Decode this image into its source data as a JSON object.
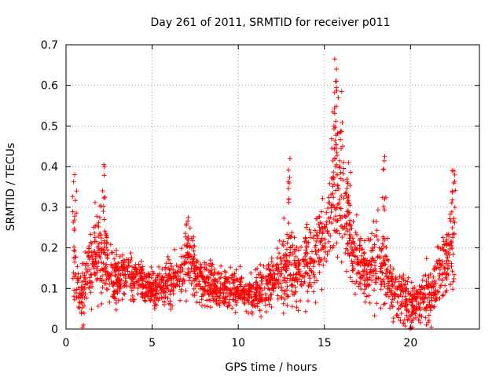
{
  "chart_data": {
    "type": "scatter",
    "title": "Day 261 of 2011, SRMTID for receiver p011",
    "xlabel": "GPS time / hours",
    "ylabel": "SRMTID / TECUs",
    "xlim": [
      0,
      24
    ],
    "ylim": [
      0,
      0.7
    ],
    "xticks": [
      0,
      5,
      10,
      15,
      20
    ],
    "yticks": [
      0,
      0.1,
      0.2,
      0.3,
      0.4,
      0.5,
      0.6,
      0.7
    ],
    "ytick_labels": [
      "0",
      "0.1",
      "0.2",
      "0.3",
      "0.4",
      "0.5",
      "0.6",
      "0.7"
    ],
    "grid": true,
    "marker": "+",
    "color": "#ff0000",
    "profile": {
      "description": "approximate envelope of the plotted scatter cloud, in data units",
      "x": [
        0.4,
        0.6,
        0.8,
        1.0,
        1.3,
        1.6,
        2.0,
        2.2,
        2.5,
        3.0,
        3.5,
        4.0,
        4.5,
        5.0,
        5.5,
        6.0,
        6.5,
        7.0,
        7.3,
        7.6,
        8.0,
        8.5,
        9.0,
        9.5,
        10.0,
        10.5,
        11.0,
        11.5,
        12.0,
        12.5,
        13.0,
        13.5,
        14.0,
        14.5,
        15.0,
        15.3,
        15.6,
        15.9,
        16.2,
        16.5,
        16.8,
        17.2,
        17.6,
        18.0,
        18.5,
        19.0,
        19.5,
        20.0,
        20.5,
        21.0,
        21.5,
        22.0,
        22.5
      ],
      "mean": [
        0.18,
        0.13,
        0.07,
        0.08,
        0.15,
        0.17,
        0.2,
        0.18,
        0.14,
        0.12,
        0.13,
        0.12,
        0.11,
        0.1,
        0.11,
        0.12,
        0.13,
        0.16,
        0.17,
        0.13,
        0.12,
        0.11,
        0.1,
        0.1,
        0.11,
        0.08,
        0.09,
        0.1,
        0.12,
        0.15,
        0.16,
        0.14,
        0.17,
        0.19,
        0.22,
        0.28,
        0.36,
        0.3,
        0.26,
        0.22,
        0.16,
        0.14,
        0.15,
        0.17,
        0.14,
        0.1,
        0.08,
        0.06,
        0.07,
        0.08,
        0.12,
        0.16,
        0.22
      ],
      "spread": [
        0.09,
        0.06,
        0.05,
        0.06,
        0.08,
        0.07,
        0.1,
        0.08,
        0.06,
        0.05,
        0.05,
        0.04,
        0.04,
        0.04,
        0.04,
        0.05,
        0.05,
        0.06,
        0.06,
        0.05,
        0.04,
        0.04,
        0.04,
        0.04,
        0.04,
        0.03,
        0.04,
        0.05,
        0.05,
        0.07,
        0.09,
        0.06,
        0.07,
        0.08,
        0.09,
        0.12,
        0.15,
        0.12,
        0.1,
        0.08,
        0.07,
        0.06,
        0.07,
        0.09,
        0.08,
        0.06,
        0.05,
        0.05,
        0.05,
        0.06,
        0.06,
        0.07,
        0.09
      ],
      "x_start": 0.4,
      "x_end": 22.6,
      "count": 2200
    },
    "peaks": [
      {
        "x": 0.5,
        "y": 0.38
      },
      {
        "x": 2.2,
        "y": 0.405
      },
      {
        "x": 7.1,
        "y": 0.275
      },
      {
        "x": 13.0,
        "y": 0.42
      },
      {
        "x": 15.6,
        "y": 0.665
      },
      {
        "x": 15.7,
        "y": 0.64
      },
      {
        "x": 16.0,
        "y": 0.585
      },
      {
        "x": 16.4,
        "y": 0.41
      },
      {
        "x": 18.5,
        "y": 0.425
      },
      {
        "x": 22.5,
        "y": 0.39
      }
    ]
  }
}
